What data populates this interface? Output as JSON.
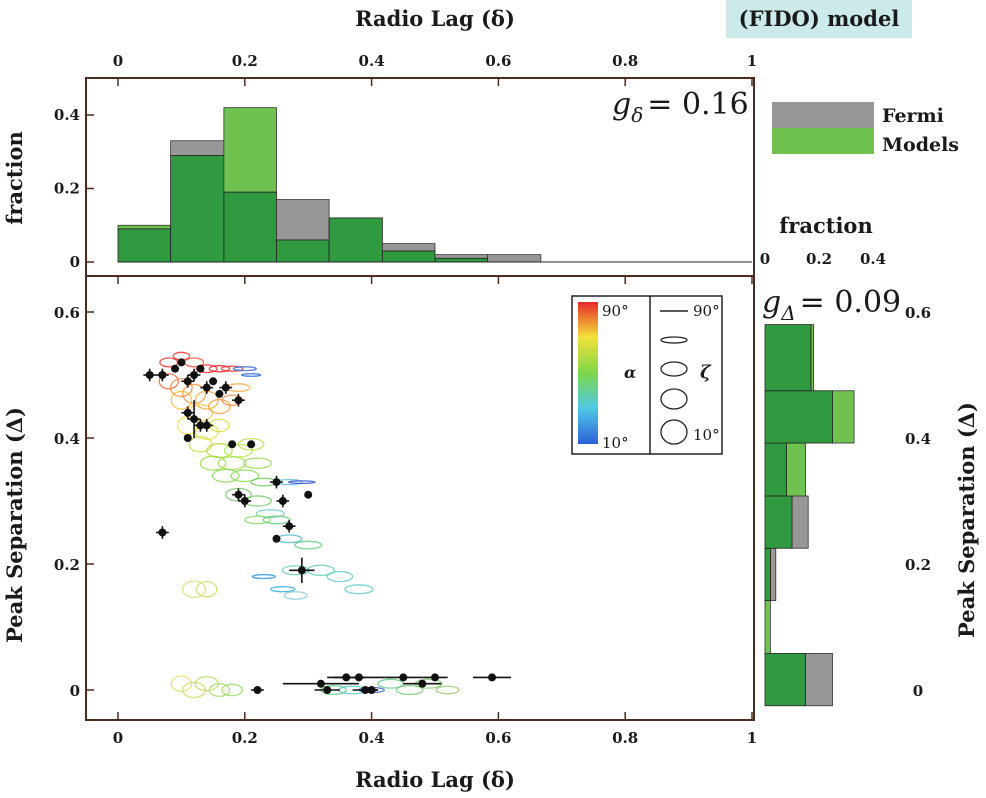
{
  "header": {
    "badge": "(FIDO) model",
    "badge_color": "#cdeaea"
  },
  "colors": {
    "fermi": "#979797",
    "models": "#6fc24f",
    "overlap": "#2f9a3f",
    "frame": "#4a2c20",
    "points": "#111111"
  },
  "chart_data": [
    {
      "id": "top-histogram",
      "type": "bar",
      "xlabel": "Radio Lag (δ)",
      "ylabel": "fraction",
      "xlim": [
        0,
        1
      ],
      "ylim": [
        0,
        0.5
      ],
      "xticks": [
        "0",
        "0.2",
        "0.4",
        "0.6",
        "0.8",
        "1"
      ],
      "yticks": [
        "0",
        "0.2",
        "0.4"
      ],
      "stat_label": "g",
      "stat_sub": "δ",
      "stat_value": "= 0.16",
      "bin_edges": [
        0,
        0.083,
        0.167,
        0.25,
        0.333,
        0.417,
        0.5,
        0.583,
        0.667
      ],
      "legend": {
        "position": "right",
        "entries": [
          "Fermi",
          "Models"
        ]
      },
      "series": [
        {
          "name": "Fermi",
          "values": [
            0.09,
            0.33,
            0.19,
            0.17,
            0.12,
            0.05,
            0.02,
            0.02
          ]
        },
        {
          "name": "Models",
          "values": [
            0.1,
            0.29,
            0.42,
            0.06,
            0.12,
            0.03,
            0.01,
            0.0
          ]
        }
      ]
    },
    {
      "id": "right-histogram",
      "type": "bar",
      "orientation": "horizontal",
      "xlabel": "fraction",
      "ylabel": "Peak Separation (Δ)",
      "xlim": [
        0,
        0.5
      ],
      "ylim": [
        -0.05,
        0.65
      ],
      "xticks": [
        "0",
        "0.2",
        "0.4"
      ],
      "yticks": [
        "0",
        "0.2",
        "0.4",
        "0.6"
      ],
      "stat_label": "g",
      "stat_sub": "Δ",
      "stat_value": "= 0.09",
      "bin_edges": [
        -0.025,
        0.058,
        0.142,
        0.225,
        0.308,
        0.392,
        0.475,
        0.58
      ],
      "series": [
        {
          "name": "Fermi",
          "values": [
            0.25,
            0.0,
            0.04,
            0.16,
            0.08,
            0.25,
            0.17
          ]
        },
        {
          "name": "Models",
          "values": [
            0.15,
            0.02,
            0.02,
            0.1,
            0.15,
            0.33,
            0.18
          ]
        }
      ]
    },
    {
      "id": "main-scatter",
      "type": "scatter",
      "xlabel": "Radio Lag (δ)",
      "ylabel": "Peak Separation (Δ)",
      "xlim": [
        -0.02,
        1.0
      ],
      "ylim": [
        -0.05,
        0.65
      ],
      "xticks": [
        "0",
        "0.2",
        "0.4",
        "0.6",
        "0.8",
        "1"
      ],
      "yticks": [
        "0",
        "0.2",
        "0.4",
        "0.6"
      ],
      "colorbar": {
        "label": "α",
        "max": "90°",
        "min": "10°"
      },
      "zeta_key": {
        "label": "ζ",
        "max": "90°",
        "min": "10°"
      },
      "fermi_points": [
        {
          "x": 0.05,
          "y": 0.5,
          "ex": 0.01,
          "ey": 0.01
        },
        {
          "x": 0.07,
          "y": 0.5,
          "ex": 0.01,
          "ey": 0.01
        },
        {
          "x": 0.09,
          "y": 0.51,
          "ex": 0,
          "ey": 0
        },
        {
          "x": 0.1,
          "y": 0.52,
          "ex": 0,
          "ey": 0
        },
        {
          "x": 0.11,
          "y": 0.49,
          "ex": 0.01,
          "ey": 0.01
        },
        {
          "x": 0.12,
          "y": 0.5,
          "ex": 0.01,
          "ey": 0.01
        },
        {
          "x": 0.13,
          "y": 0.51,
          "ex": 0,
          "ey": 0
        },
        {
          "x": 0.14,
          "y": 0.48,
          "ex": 0.01,
          "ey": 0.01
        },
        {
          "x": 0.15,
          "y": 0.49,
          "ex": 0,
          "ey": 0
        },
        {
          "x": 0.16,
          "y": 0.47,
          "ex": 0,
          "ey": 0
        },
        {
          "x": 0.17,
          "y": 0.48,
          "ex": 0.01,
          "ey": 0.01
        },
        {
          "x": 0.19,
          "y": 0.46,
          "ex": 0.01,
          "ey": 0.01
        },
        {
          "x": 0.11,
          "y": 0.44,
          "ex": 0.01,
          "ey": 0.01
        },
        {
          "x": 0.12,
          "y": 0.43,
          "ex": 0.01,
          "ey": 0.03
        },
        {
          "x": 0.13,
          "y": 0.42,
          "ex": 0.01,
          "ey": 0.01
        },
        {
          "x": 0.14,
          "y": 0.42,
          "ex": 0.01,
          "ey": 0.01
        },
        {
          "x": 0.11,
          "y": 0.4,
          "ex": 0,
          "ey": 0
        },
        {
          "x": 0.18,
          "y": 0.39,
          "ex": 0,
          "ey": 0
        },
        {
          "x": 0.21,
          "y": 0.39,
          "ex": 0,
          "ey": 0
        },
        {
          "x": 0.25,
          "y": 0.33,
          "ex": 0.01,
          "ey": 0.01
        },
        {
          "x": 0.19,
          "y": 0.31,
          "ex": 0.01,
          "ey": 0.01
        },
        {
          "x": 0.2,
          "y": 0.3,
          "ex": 0.01,
          "ey": 0.01
        },
        {
          "x": 0.26,
          "y": 0.3,
          "ex": 0.01,
          "ey": 0.01
        },
        {
          "x": 0.3,
          "y": 0.31,
          "ex": 0,
          "ey": 0
        },
        {
          "x": 0.27,
          "y": 0.26,
          "ex": 0.01,
          "ey": 0.01
        },
        {
          "x": 0.25,
          "y": 0.24,
          "ex": 0,
          "ey": 0
        },
        {
          "x": 0.07,
          "y": 0.25,
          "ex": 0.01,
          "ey": 0.01
        },
        {
          "x": 0.29,
          "y": 0.19,
          "ex": 0.02,
          "ey": 0.02
        },
        {
          "x": 0.22,
          "y": 0.0,
          "ex": 0.01,
          "ey": 0
        },
        {
          "x": 0.32,
          "y": 0.01,
          "ex": 0.06,
          "ey": 0
        },
        {
          "x": 0.33,
          "y": 0.0,
          "ex": 0.02,
          "ey": 0
        },
        {
          "x": 0.36,
          "y": 0.02,
          "ex": 0.03,
          "ey": 0
        },
        {
          "x": 0.38,
          "y": 0.02,
          "ex": 0.04,
          "ey": 0
        },
        {
          "x": 0.39,
          "y": 0.0,
          "ex": 0.02,
          "ey": 0
        },
        {
          "x": 0.4,
          "y": 0.0,
          "ex": 0.01,
          "ey": 0
        },
        {
          "x": 0.45,
          "y": 0.02,
          "ex": 0.03,
          "ey": 0
        },
        {
          "x": 0.48,
          "y": 0.01,
          "ex": 0.03,
          "ey": 0
        },
        {
          "x": 0.5,
          "y": 0.02,
          "ex": 0.02,
          "ey": 0
        },
        {
          "x": 0.59,
          "y": 0.02,
          "ex": 0.03,
          "ey": 0
        }
      ],
      "model_ellipses": [
        {
          "x": 0.08,
          "y": 0.52,
          "rx": 0.014,
          "ry": 0.007,
          "c": "#e33"
        },
        {
          "x": 0.1,
          "y": 0.53,
          "rx": 0.013,
          "ry": 0.006,
          "c": "#e33"
        },
        {
          "x": 0.12,
          "y": 0.52,
          "rx": 0.015,
          "ry": 0.007,
          "c": "#f54"
        },
        {
          "x": 0.14,
          "y": 0.51,
          "rx": 0.016,
          "ry": 0.006,
          "c": "#e33"
        },
        {
          "x": 0.16,
          "y": 0.51,
          "rx": 0.016,
          "ry": 0.005,
          "c": "#e22"
        },
        {
          "x": 0.18,
          "y": 0.51,
          "rx": 0.017,
          "ry": 0.004,
          "c": "#e33"
        },
        {
          "x": 0.2,
          "y": 0.51,
          "rx": 0.018,
          "ry": 0.003,
          "c": "#3a6fd8"
        },
        {
          "x": 0.21,
          "y": 0.5,
          "rx": 0.015,
          "ry": 0.002,
          "c": "#2a66d8"
        },
        {
          "x": 0.08,
          "y": 0.49,
          "rx": 0.015,
          "ry": 0.012,
          "c": "#f63"
        },
        {
          "x": 0.1,
          "y": 0.48,
          "rx": 0.017,
          "ry": 0.014,
          "c": "#f84"
        },
        {
          "x": 0.12,
          "y": 0.47,
          "rx": 0.018,
          "ry": 0.015,
          "c": "#f94"
        },
        {
          "x": 0.14,
          "y": 0.46,
          "rx": 0.018,
          "ry": 0.014,
          "c": "#fa4"
        },
        {
          "x": 0.1,
          "y": 0.46,
          "rx": 0.016,
          "ry": 0.014,
          "c": "#fb3"
        },
        {
          "x": 0.13,
          "y": 0.44,
          "rx": 0.019,
          "ry": 0.013,
          "c": "#fc4"
        },
        {
          "x": 0.16,
          "y": 0.45,
          "rx": 0.017,
          "ry": 0.011,
          "c": "#f9a040"
        },
        {
          "x": 0.18,
          "y": 0.46,
          "rx": 0.016,
          "ry": 0.008,
          "c": "#f84"
        },
        {
          "x": 0.19,
          "y": 0.48,
          "rx": 0.018,
          "ry": 0.006,
          "c": "#fa4"
        },
        {
          "x": 0.11,
          "y": 0.42,
          "rx": 0.016,
          "ry": 0.014,
          "c": "#fd4"
        },
        {
          "x": 0.14,
          "y": 0.41,
          "rx": 0.018,
          "ry": 0.012,
          "c": "#ed4"
        },
        {
          "x": 0.16,
          "y": 0.42,
          "rx": 0.015,
          "ry": 0.01,
          "c": "#dd4"
        },
        {
          "x": 0.13,
          "y": 0.39,
          "rx": 0.018,
          "ry": 0.012,
          "c": "#cd4"
        },
        {
          "x": 0.16,
          "y": 0.38,
          "rx": 0.02,
          "ry": 0.011,
          "c": "#bd4"
        },
        {
          "x": 0.19,
          "y": 0.38,
          "rx": 0.022,
          "ry": 0.01,
          "c": "#ae4"
        },
        {
          "x": 0.21,
          "y": 0.39,
          "rx": 0.02,
          "ry": 0.009,
          "c": "#bd4"
        },
        {
          "x": 0.15,
          "y": 0.36,
          "rx": 0.02,
          "ry": 0.011,
          "c": "#9d4"
        },
        {
          "x": 0.18,
          "y": 0.36,
          "rx": 0.022,
          "ry": 0.01,
          "c": "#ad5"
        },
        {
          "x": 0.22,
          "y": 0.36,
          "rx": 0.022,
          "ry": 0.008,
          "c": "#9d5"
        },
        {
          "x": 0.17,
          "y": 0.34,
          "rx": 0.021,
          "ry": 0.01,
          "c": "#8d5"
        },
        {
          "x": 0.2,
          "y": 0.34,
          "rx": 0.022,
          "ry": 0.009,
          "c": "#8d5"
        },
        {
          "x": 0.23,
          "y": 0.33,
          "rx": 0.02,
          "ry": 0.006,
          "c": "#7c6"
        },
        {
          "x": 0.27,
          "y": 0.33,
          "rx": 0.02,
          "ry": 0.004,
          "c": "#6bd"
        },
        {
          "x": 0.29,
          "y": 0.33,
          "rx": 0.021,
          "ry": 0.002,
          "c": "#35c"
        },
        {
          "x": 0.19,
          "y": 0.31,
          "rx": 0.02,
          "ry": 0.01,
          "c": "#7c6"
        },
        {
          "x": 0.22,
          "y": 0.3,
          "rx": 0.022,
          "ry": 0.008,
          "c": "#7c6"
        },
        {
          "x": 0.24,
          "y": 0.28,
          "rx": 0.022,
          "ry": 0.006,
          "c": "#7cc"
        },
        {
          "x": 0.22,
          "y": 0.27,
          "rx": 0.02,
          "ry": 0.006,
          "c": "#8d6"
        },
        {
          "x": 0.25,
          "y": 0.27,
          "rx": 0.021,
          "ry": 0.006,
          "c": "#6c7"
        },
        {
          "x": 0.27,
          "y": 0.24,
          "rx": 0.02,
          "ry": 0.006,
          "c": "#5bc"
        },
        {
          "x": 0.3,
          "y": 0.23,
          "rx": 0.021,
          "ry": 0.006,
          "c": "#6c8"
        },
        {
          "x": 0.28,
          "y": 0.19,
          "rx": 0.021,
          "ry": 0.007,
          "c": "#6cb"
        },
        {
          "x": 0.32,
          "y": 0.19,
          "rx": 0.021,
          "ry": 0.008,
          "c": "#6cb"
        },
        {
          "x": 0.35,
          "y": 0.18,
          "rx": 0.02,
          "ry": 0.008,
          "c": "#6cc"
        },
        {
          "x": 0.23,
          "y": 0.18,
          "rx": 0.018,
          "ry": 0.003,
          "c": "#39d"
        },
        {
          "x": 0.26,
          "y": 0.16,
          "rx": 0.019,
          "ry": 0.004,
          "c": "#3ad"
        },
        {
          "x": 0.28,
          "y": 0.15,
          "rx": 0.018,
          "ry": 0.006,
          "c": "#8cd"
        },
        {
          "x": 0.38,
          "y": 0.16,
          "rx": 0.022,
          "ry": 0.007,
          "c": "#6cc"
        },
        {
          "x": 0.12,
          "y": 0.16,
          "rx": 0.018,
          "ry": 0.013,
          "c": "#dd7"
        },
        {
          "x": 0.14,
          "y": 0.16,
          "rx": 0.016,
          "ry": 0.012,
          "c": "#cd6"
        },
        {
          "x": 0.1,
          "y": 0.01,
          "rx": 0.016,
          "ry": 0.012,
          "c": "#dd6"
        },
        {
          "x": 0.12,
          "y": 0.0,
          "rx": 0.018,
          "ry": 0.012,
          "c": "#cd6"
        },
        {
          "x": 0.14,
          "y": 0.01,
          "rx": 0.018,
          "ry": 0.011,
          "c": "#bd6"
        },
        {
          "x": 0.16,
          "y": 0.0,
          "rx": 0.016,
          "ry": 0.01,
          "c": "#ad6"
        },
        {
          "x": 0.18,
          "y": 0.0,
          "rx": 0.016,
          "ry": 0.009,
          "c": "#9d6"
        },
        {
          "x": 0.34,
          "y": 0.0,
          "rx": 0.02,
          "ry": 0.007,
          "c": "#6c8"
        },
        {
          "x": 0.37,
          "y": 0.0,
          "rx": 0.022,
          "ry": 0.006,
          "c": "#5cc"
        },
        {
          "x": 0.4,
          "y": 0.0,
          "rx": 0.02,
          "ry": 0.004,
          "c": "#36c"
        },
        {
          "x": 0.43,
          "y": 0.01,
          "rx": 0.02,
          "ry": 0.007,
          "c": "#6c8"
        },
        {
          "x": 0.46,
          "y": 0.0,
          "rx": 0.021,
          "ry": 0.007,
          "c": "#7c7"
        },
        {
          "x": 0.49,
          "y": 0.01,
          "rx": 0.021,
          "ry": 0.007,
          "c": "#8c7"
        },
        {
          "x": 0.52,
          "y": 0.0,
          "rx": 0.018,
          "ry": 0.006,
          "c": "#9c7"
        }
      ]
    }
  ]
}
